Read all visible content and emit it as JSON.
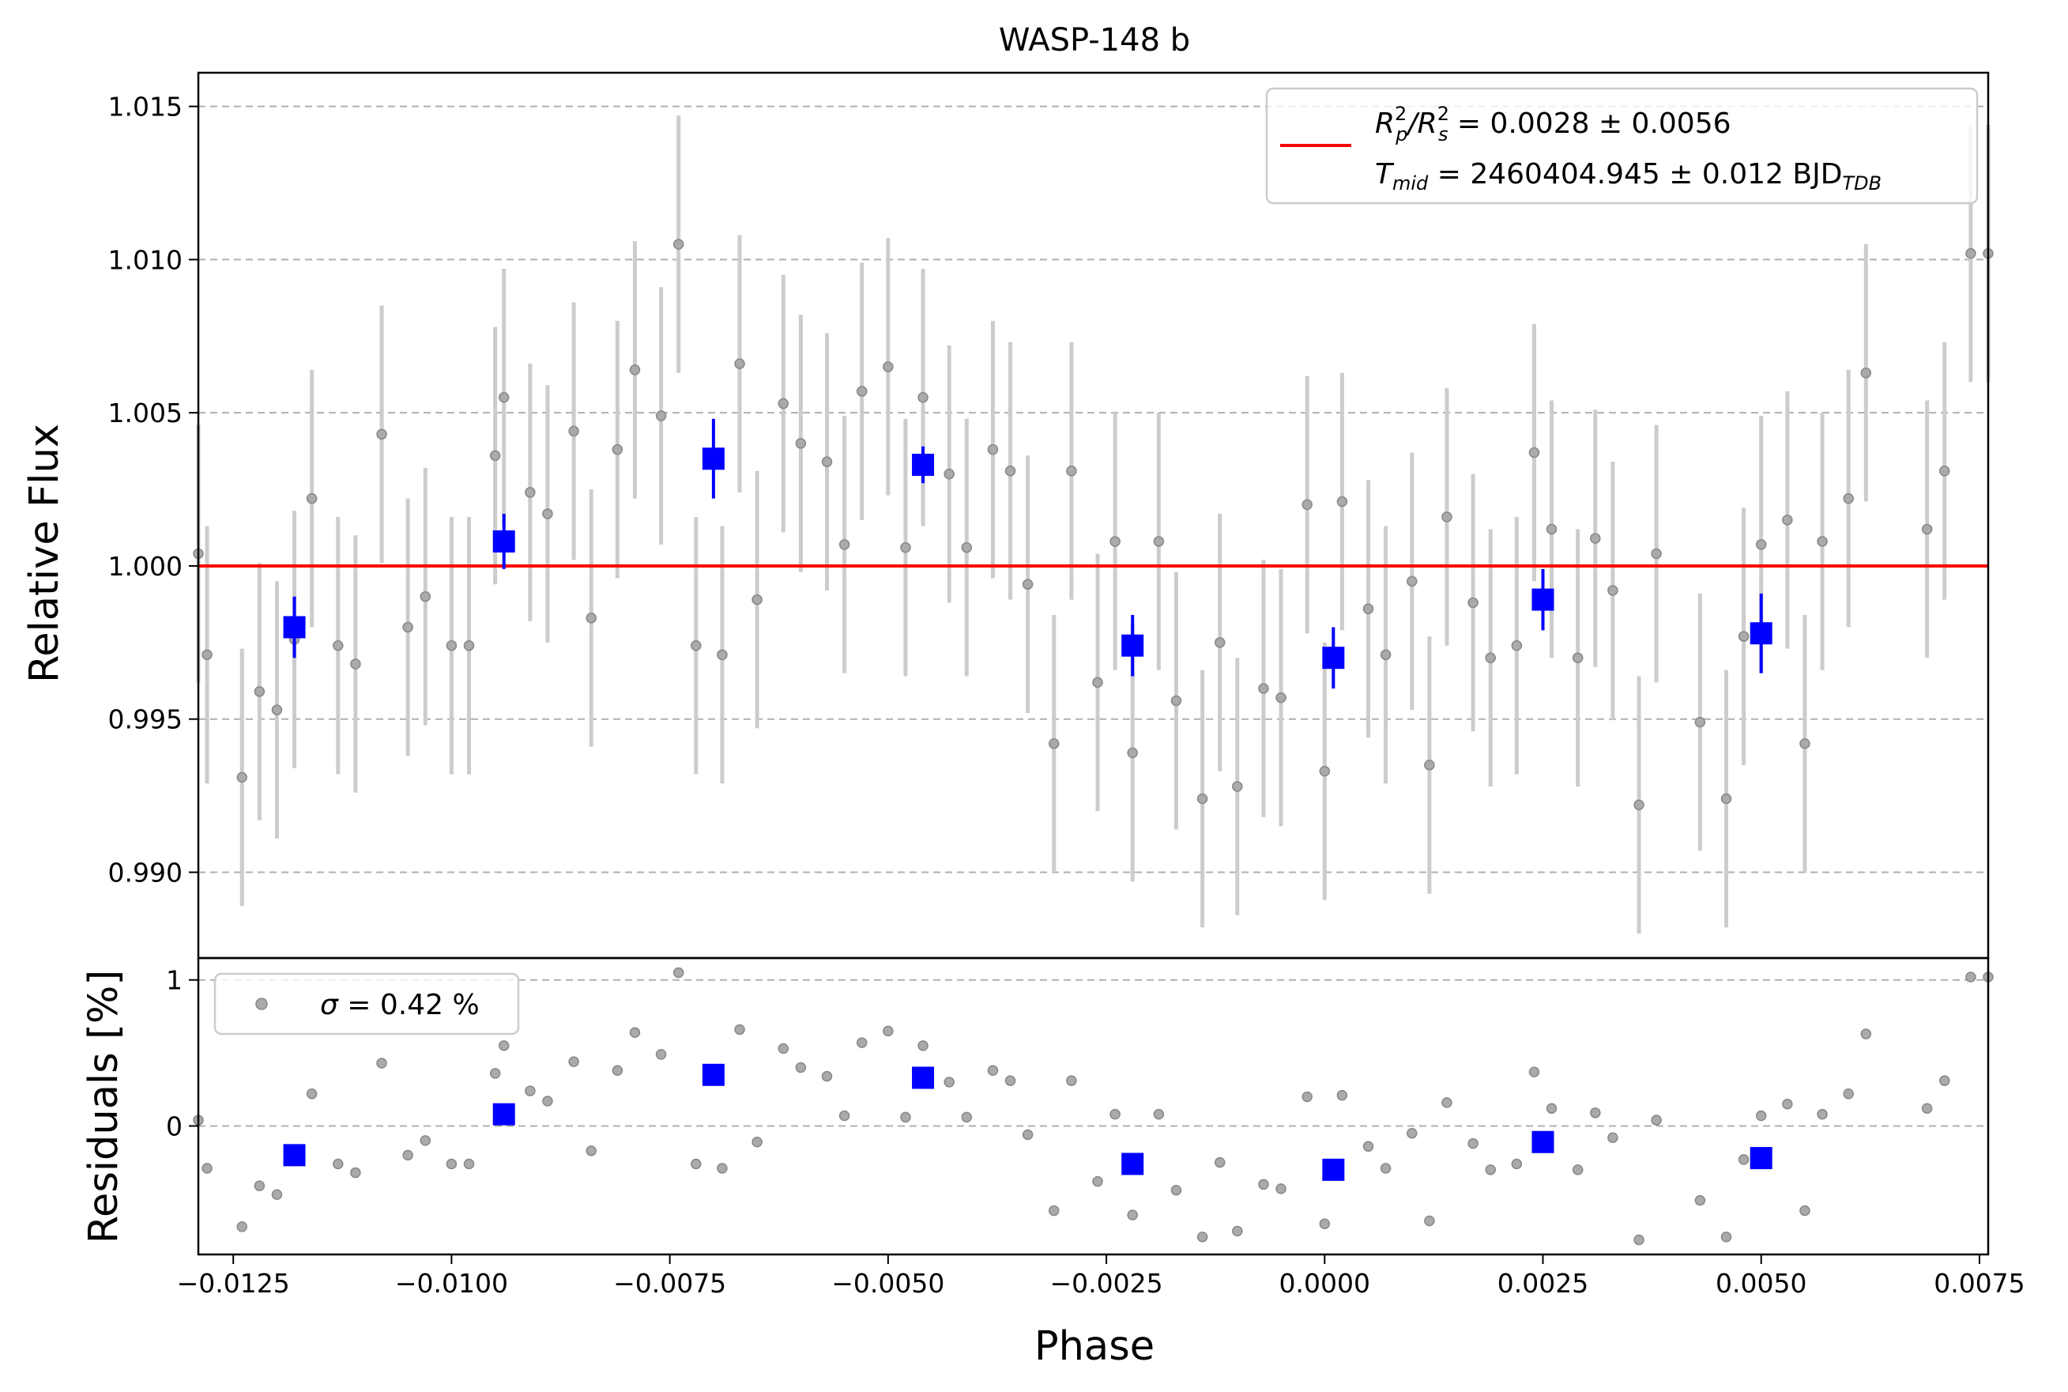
{
  "chart_data": [
    {
      "type": "scatter",
      "panel": "main",
      "title": "WASP-148 b",
      "xlabel": "",
      "ylabel": "Relative Flux",
      "xlim": [
        -0.0129,
        0.0076
      ],
      "ylim": [
        0.9872,
        1.0161
      ],
      "yticks": [
        0.99,
        0.995,
        1.0,
        1.005,
        1.01,
        1.015
      ],
      "ytick_labels": [
        "0.990",
        "0.995",
        "1.000",
        "1.005",
        "1.010",
        "1.015"
      ],
      "grid": "y-dashed",
      "legend": {
        "placement": "top-right",
        "line1": {
          "pre": "R",
          "sup1": "2",
          "sub1": "p",
          "mid": "/R",
          "sup2": "2",
          "sub2": "s",
          "value": " = 0.0028 ± 0.0056"
        },
        "line2": {
          "pre": "T",
          "sub1": "mid",
          "value": " = 2460404.945 ± 0.012 BJD",
          "sub2": "TDB"
        }
      },
      "model": {
        "name": "model",
        "y": 1.0,
        "color": "#ff0000"
      },
      "series": [
        {
          "name": "raw",
          "color": "#999999",
          "errcolor": "#cccccc",
          "x": [
            -0.0129,
            -0.0128,
            -0.0124,
            -0.0122,
            -0.012,
            -0.0118,
            -0.0116,
            -0.0113,
            -0.0111,
            -0.0108,
            -0.0105,
            -0.0103,
            -0.01,
            -0.0098,
            -0.0095,
            -0.0094,
            -0.0091,
            -0.0089,
            -0.0086,
            -0.0084,
            -0.0081,
            -0.0079,
            -0.0076,
            -0.0074,
            -0.0072,
            -0.0069,
            -0.0067,
            -0.0065,
            -0.0062,
            -0.006,
            -0.0057,
            -0.0055,
            -0.0053,
            -0.005,
            -0.0048,
            -0.0046,
            -0.0043,
            -0.0041,
            -0.0038,
            -0.0036,
            -0.0034,
            -0.0031,
            -0.0029,
            -0.0026,
            -0.0024,
            -0.0022,
            -0.0019,
            -0.0017,
            -0.0014,
            -0.0012,
            -0.001,
            -0.0007,
            -0.0005,
            -0.0002,
            0.0,
            0.0002,
            0.0005,
            0.0007,
            0.001,
            0.0012,
            0.0014,
            0.0017,
            0.0019,
            0.0022,
            0.0024,
            0.0026,
            0.0029,
            0.0031,
            0.0033,
            0.0036,
            0.0038,
            0.0043,
            0.0046,
            0.0048,
            0.005,
            0.0053,
            0.0055,
            0.0057,
            0.006,
            0.0062,
            0.0069,
            0.0071,
            0.0074,
            0.0076
          ],
          "y": [
            1.0004,
            0.9971,
            0.9931,
            0.9959,
            0.9953,
            0.9976,
            1.0022,
            0.9974,
            0.9968,
            1.0043,
            0.998,
            0.999,
            0.9974,
            0.9974,
            1.0036,
            1.0055,
            1.0024,
            1.0017,
            1.0044,
            0.9983,
            1.0038,
            1.0064,
            1.0049,
            1.0105,
            0.9974,
            0.9971,
            1.0066,
            0.9989,
            1.0053,
            1.004,
            1.0034,
            1.0007,
            1.0057,
            1.0065,
            1.0006,
            1.0055,
            1.003,
            1.0006,
            1.0038,
            1.0031,
            0.9994,
            0.9942,
            1.0031,
            0.9962,
            1.0008,
            0.9939,
            1.0008,
            0.9956,
            0.9924,
            0.9975,
            0.9928,
            0.996,
            0.9957,
            1.002,
            0.9933,
            1.0021,
            0.9986,
            0.9971,
            0.9995,
            0.9935,
            1.0016,
            0.9988,
            0.997,
            0.9974,
            1.0037,
            1.0012,
            0.997,
            1.0009,
            0.9992,
            0.9922,
            1.0004,
            0.9949,
            0.9924,
            0.9977,
            1.0007,
            1.0015,
            0.9942,
            1.0008,
            1.0022,
            1.0063,
            1.0012,
            1.0031,
            1.0102,
            1.0102
          ],
          "err": [
            0.0042,
            0.0042,
            0.0042,
            0.0042,
            0.0042,
            0.0042,
            0.0042,
            0.0042,
            0.0042,
            0.0042,
            0.0042,
            0.0042,
            0.0042,
            0.0042,
            0.0042,
            0.0042,
            0.0042,
            0.0042,
            0.0042,
            0.0042,
            0.0042,
            0.0042,
            0.0042,
            0.0042,
            0.0042,
            0.0042,
            0.0042,
            0.0042,
            0.0042,
            0.0042,
            0.0042,
            0.0042,
            0.0042,
            0.0042,
            0.0042,
            0.0042,
            0.0042,
            0.0042,
            0.0042,
            0.0042,
            0.0042,
            0.0042,
            0.0042,
            0.0042,
            0.0042,
            0.0042,
            0.0042,
            0.0042,
            0.0042,
            0.0042,
            0.0042,
            0.0042,
            0.0042,
            0.0042,
            0.0042,
            0.0042,
            0.0042,
            0.0042,
            0.0042,
            0.0042,
            0.0042,
            0.0042,
            0.0042,
            0.0042,
            0.0042,
            0.0042,
            0.0042,
            0.0042,
            0.0042,
            0.0042,
            0.0042,
            0.0042,
            0.0042,
            0.0042,
            0.0042,
            0.0042,
            0.0042,
            0.0042,
            0.0042,
            0.0042,
            0.0042,
            0.0042,
            0.0042,
            0.0042
          ]
        },
        {
          "name": "binned",
          "color": "#0000ff",
          "x": [
            -0.0118,
            -0.0094,
            -0.007,
            -0.0046,
            -0.0022,
            0.0001,
            0.0025,
            0.005
          ],
          "y": [
            0.998,
            1.0008,
            1.0035,
            1.0033,
            0.9974,
            0.997,
            0.9989,
            0.9978
          ],
          "err": [
            0.001,
            0.0009,
            0.0013,
            0.0006,
            0.001,
            0.001,
            0.001,
            0.0013
          ]
        }
      ]
    },
    {
      "type": "scatter",
      "panel": "residuals",
      "xlabel": "Phase",
      "ylabel": "Residuals [%]",
      "xlim": [
        -0.0129,
        0.0076
      ],
      "ylim": [
        -0.88,
        1.15
      ],
      "xticks": [
        -0.0125,
        -0.01,
        -0.0075,
        -0.005,
        -0.0025,
        0.0,
        0.0025,
        0.005,
        0.0075
      ],
      "xtick_labels": [
        "−0.0125",
        "−0.0100",
        "−0.0075",
        "−0.0050",
        "−0.0025",
        "0.0000",
        "0.0025",
        "0.0050",
        "0.0075"
      ],
      "yticks": [
        0,
        1
      ],
      "ytick_labels": [
        "0",
        "1"
      ],
      "grid": "y-dashed",
      "legend": {
        "placement": "top-left",
        "pre": "σ",
        "value": " = 0.42 %"
      },
      "zero_line": 0
    }
  ]
}
